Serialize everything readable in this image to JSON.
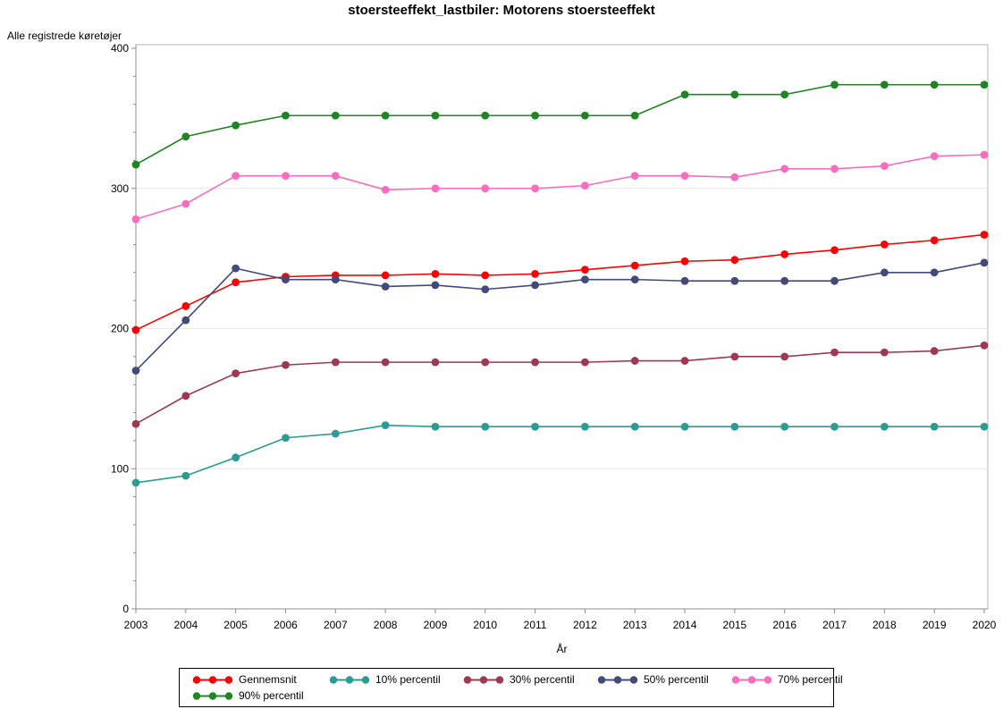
{
  "title": "stoersteeffekt_lastbiler: Motorens stoersteeffekt",
  "chart_data": {
    "type": "line",
    "title": "stoersteeffekt_lastbiler: Motorens stoersteeffekt",
    "xlabel": "År",
    "ylabel": "Alle registrede køretøjer",
    "ylim": [
      0,
      400
    ],
    "yticks": [
      0,
      100,
      200,
      300,
      400
    ],
    "y_minor_tick_step": 20,
    "grid": "horizontal",
    "legend_position": "bottom-boxed",
    "x": [
      2003,
      2004,
      2005,
      2006,
      2007,
      2008,
      2009,
      2010,
      2011,
      2012,
      2013,
      2014,
      2015,
      2016,
      2017,
      2018,
      2019,
      2020
    ],
    "series": [
      {
        "name": "Gennemsnit",
        "color": "#fa0000",
        "values": [
          199,
          216,
          233,
          237,
          238,
          238,
          239,
          238,
          239,
          242,
          245,
          248,
          249,
          253,
          256,
          260,
          263,
          267
        ]
      },
      {
        "name": "10% percentil",
        "color": "#2b9c93",
        "values": [
          90,
          95,
          108,
          122,
          125,
          131,
          130,
          130,
          130,
          130,
          130,
          130,
          130,
          130,
          130,
          130,
          130,
          130
        ]
      },
      {
        "name": "30% percentil",
        "color": "#9d3a52",
        "values": [
          132,
          152,
          168,
          174,
          176,
          176,
          176,
          176,
          176,
          176,
          177,
          177,
          180,
          180,
          183,
          183,
          184,
          188
        ]
      },
      {
        "name": "50% percentil",
        "color": "#414a78",
        "values": [
          170,
          206,
          243,
          235,
          235,
          230,
          231,
          228,
          231,
          235,
          235,
          234,
          234,
          234,
          234,
          240,
          240,
          247
        ]
      },
      {
        "name": "70% percentil",
        "color": "#fa6cbe",
        "values": [
          278,
          289,
          309,
          309,
          309,
          299,
          300,
          300,
          300,
          302,
          309,
          309,
          308,
          314,
          314,
          316,
          323,
          324
        ]
      },
      {
        "name": "90% percentil",
        "color": "#1e8522",
        "values": [
          317,
          337,
          345,
          352,
          352,
          352,
          352,
          352,
          352,
          352,
          352,
          367,
          367,
          367,
          374,
          374,
          374,
          374
        ]
      }
    ],
    "colors": {
      "gridline": "#e8e8e8",
      "frame": "#b5b5b5",
      "axis": "#8c8c8c"
    }
  }
}
